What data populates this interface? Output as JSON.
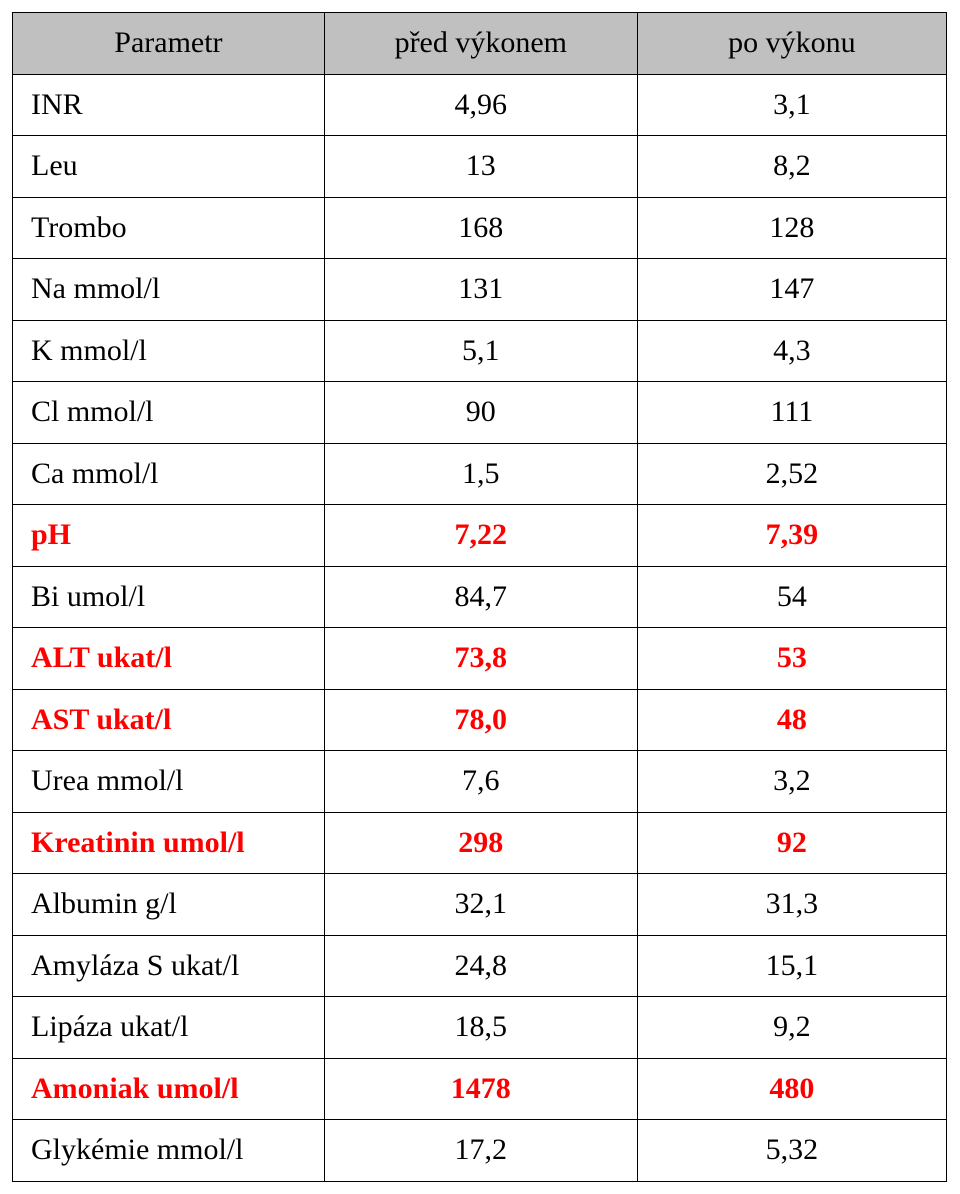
{
  "table": {
    "header_bg": "#c0c0c0",
    "highlight_color": "#ff0000",
    "text_color": "#000000",
    "columns": [
      "Parametr",
      "před výkonem",
      "po výkonu"
    ],
    "rows": [
      {
        "param": "INR",
        "before": "4,96",
        "after": "3,1",
        "highlight": false
      },
      {
        "param": "Leu",
        "before": "13",
        "after": "8,2",
        "highlight": false
      },
      {
        "param": "Trombo",
        "before": "168",
        "after": "128",
        "highlight": false
      },
      {
        "param": "Na mmol/l",
        "before": "131",
        "after": "147",
        "highlight": false
      },
      {
        "param": "K mmol/l",
        "before": "5,1",
        "after": "4,3",
        "highlight": false
      },
      {
        "param": "Cl mmol/l",
        "before": "90",
        "after": "111",
        "highlight": false
      },
      {
        "param": "Ca mmol/l",
        "before": "1,5",
        "after": "2,52",
        "highlight": false
      },
      {
        "param": "pH",
        "before": "7,22",
        "after": "7,39",
        "highlight": true
      },
      {
        "param": "Bi umol/l",
        "before": "84,7",
        "after": "54",
        "highlight": false
      },
      {
        "param": "ALT ukat/l",
        "before": "73,8",
        "after": "53",
        "highlight": true
      },
      {
        "param": "AST ukat/l",
        "before": "78,0",
        "after": "48",
        "highlight": true
      },
      {
        "param": "Urea mmol/l",
        "before": "7,6",
        "after": "3,2",
        "highlight": false
      },
      {
        "param": "Kreatinin umol/l",
        "before": "298",
        "after": "92",
        "highlight": true
      },
      {
        "param": "Albumin g/l",
        "before": "32,1",
        "after": "31,3",
        "highlight": false
      },
      {
        "param": "Amyláza S ukat/l",
        "before": "24,8",
        "after": "15,1",
        "highlight": false
      },
      {
        "param": "Lipáza ukat/l",
        "before": "18,5",
        "after": "9,2",
        "highlight": false
      },
      {
        "param": "Amoniak umol/l",
        "before": "1478",
        "after": "480",
        "highlight": true
      },
      {
        "param": "Glykémie mmol/l",
        "before": "17,2",
        "after": "5,32",
        "highlight": false
      }
    ]
  }
}
